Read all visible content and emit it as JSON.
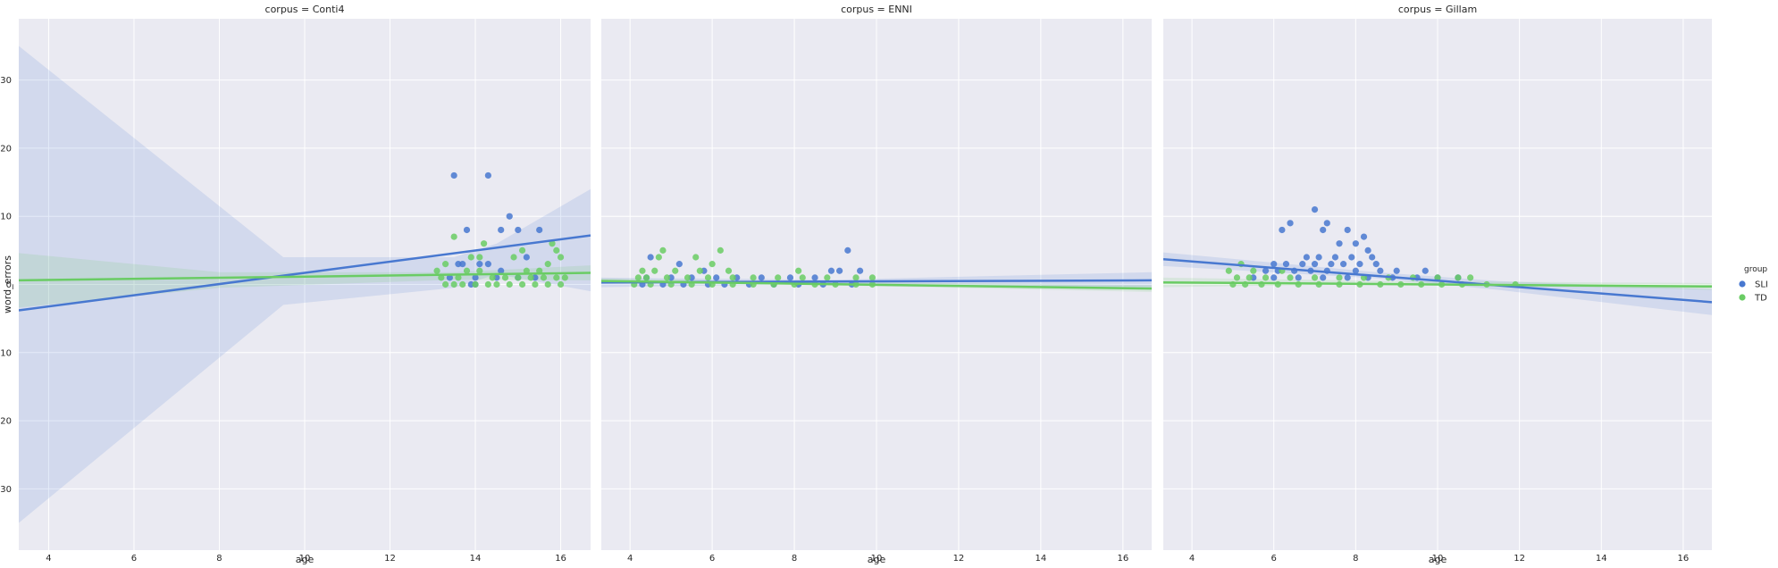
{
  "colors": {
    "SLI": "#4878d0",
    "TD": "#6acc64",
    "panel_bg": "#eaeaf2",
    "grid": "#ffffff"
  },
  "chart_data": {
    "type": "scatter",
    "grid": true,
    "ylabel": "word_errors",
    "ylim": [
      -39,
      39
    ],
    "yticks": [
      -30,
      -20,
      -10,
      0,
      10,
      20,
      30
    ],
    "xlim": [
      3.3,
      16.7
    ],
    "xticks": [
      4,
      6,
      8,
      10,
      12,
      14,
      16
    ],
    "legend": {
      "title": "group",
      "placement": "right",
      "entries": [
        "SLI",
        "TD"
      ]
    },
    "panels": [
      {
        "title": "corpus = Conti4",
        "xlabel": "age",
        "series": [
          {
            "name": "SLI",
            "points": [
              [
                13.5,
                16
              ],
              [
                14.3,
                16
              ],
              [
                13.8,
                8
              ],
              [
                14.8,
                10
              ],
              [
                14.6,
                8
              ],
              [
                15.0,
                8
              ],
              [
                15.5,
                8
              ],
              [
                13.6,
                3
              ],
              [
                13.7,
                3
              ],
              [
                14.1,
                3
              ],
              [
                14.3,
                3
              ],
              [
                14.6,
                2
              ],
              [
                15.2,
                4
              ],
              [
                13.4,
                1
              ],
              [
                14.0,
                1
              ],
              [
                14.5,
                1
              ],
              [
                15.0,
                1
              ],
              [
                15.4,
                1
              ],
              [
                14.0,
                0
              ],
              [
                13.9,
                0
              ]
            ],
            "fit": [
              [
                3.3,
                -3.8
              ],
              [
                16.7,
                7.2
              ]
            ],
            "band": [
              [
                3.3,
                -35
              ],
              [
                9.5,
                -3
              ],
              [
                13.5,
                -0.5
              ],
              [
                14.5,
                1.5
              ],
              [
                16.7,
                -1
              ],
              [
                16.7,
                14
              ],
              [
                14.5,
                6
              ],
              [
                13.5,
                4
              ],
              [
                9.5,
                4
              ],
              [
                3.3,
                35
              ]
            ]
          },
          {
            "name": "TD",
            "points": [
              [
                13.5,
                7
              ],
              [
                14.2,
                6
              ],
              [
                15.8,
                6
              ],
              [
                15.9,
                5
              ],
              [
                13.3,
                3
              ],
              [
                13.1,
                2
              ],
              [
                15.7,
                3
              ],
              [
                14.9,
                4
              ],
              [
                15.1,
                5
              ],
              [
                16.0,
                4
              ],
              [
                13.2,
                1
              ],
              [
                13.6,
                1
              ],
              [
                13.8,
                2
              ],
              [
                14.1,
                2
              ],
              [
                14.4,
                1
              ],
              [
                14.7,
                1
              ],
              [
                15.0,
                1
              ],
              [
                15.3,
                1
              ],
              [
                15.6,
                1
              ],
              [
                15.9,
                1
              ],
              [
                16.1,
                1
              ],
              [
                13.3,
                0
              ],
              [
                13.5,
                0
              ],
              [
                13.7,
                0
              ],
              [
                14.0,
                0
              ],
              [
                14.3,
                0
              ],
              [
                14.5,
                0
              ],
              [
                14.8,
                0
              ],
              [
                15.1,
                0
              ],
              [
                15.4,
                0
              ],
              [
                15.7,
                0
              ],
              [
                16.0,
                0
              ],
              [
                13.9,
                4
              ],
              [
                14.1,
                4
              ],
              [
                15.2,
                2
              ],
              [
                15.5,
                2
              ]
            ],
            "fit": [
              [
                3.3,
                0.6
              ],
              [
                16.7,
                1.7
              ]
            ],
            "band": [
              [
                3.3,
                -3.4
              ],
              [
                8,
                -0.5
              ],
              [
                13.5,
                0.7
              ],
              [
                16.7,
                0.6
              ],
              [
                16.7,
                2.8
              ],
              [
                13.5,
                1.8
              ],
              [
                8,
                1.8
              ],
              [
                3.3,
                4.6
              ]
            ]
          }
        ]
      },
      {
        "title": "corpus = ENNI",
        "xlabel": "age",
        "series": [
          {
            "name": "SLI",
            "points": [
              [
                9.3,
                5
              ],
              [
                4.5,
                4
              ],
              [
                5.2,
                3
              ],
              [
                5.8,
                2
              ],
              [
                8.9,
                2
              ],
              [
                9.1,
                2
              ],
              [
                9.6,
                2
              ],
              [
                4.4,
                1
              ],
              [
                5.0,
                1
              ],
              [
                5.5,
                1
              ],
              [
                6.1,
                1
              ],
              [
                6.6,
                1
              ],
              [
                7.2,
                1
              ],
              [
                7.9,
                1
              ],
              [
                8.5,
                1
              ],
              [
                4.3,
                0
              ],
              [
                4.8,
                0
              ],
              [
                5.3,
                0
              ],
              [
                5.9,
                0
              ],
              [
                6.3,
                0
              ],
              [
                6.9,
                0
              ],
              [
                7.5,
                0
              ],
              [
                8.1,
                0
              ],
              [
                8.7,
                0
              ],
              [
                9.4,
                0
              ]
            ],
            "fit": [
              [
                3.3,
                0.3
              ],
              [
                16.7,
                0.6
              ]
            ],
            "band": [
              [
                3.3,
                -0.4
              ],
              [
                9,
                0.1
              ],
              [
                16.7,
                -0.6
              ],
              [
                16.7,
                1.8
              ],
              [
                9,
                0.7
              ],
              [
                3.3,
                1.0
              ]
            ]
          },
          {
            "name": "TD",
            "points": [
              [
                4.8,
                5
              ],
              [
                6.2,
                5
              ],
              [
                4.7,
                4
              ],
              [
                5.6,
                4
              ],
              [
                6.0,
                3
              ],
              [
                4.3,
                2
              ],
              [
                4.6,
                2
              ],
              [
                5.1,
                2
              ],
              [
                5.7,
                2
              ],
              [
                6.4,
                2
              ],
              [
                8.1,
                2
              ],
              [
                4.2,
                1
              ],
              [
                4.4,
                1
              ],
              [
                4.9,
                1
              ],
              [
                5.4,
                1
              ],
              [
                5.9,
                1
              ],
              [
                6.5,
                1
              ],
              [
                7.0,
                1
              ],
              [
                7.6,
                1
              ],
              [
                8.2,
                1
              ],
              [
                8.8,
                1
              ],
              [
                9.5,
                1
              ],
              [
                9.9,
                1
              ],
              [
                4.1,
                0
              ],
              [
                4.5,
                0
              ],
              [
                5.0,
                0
              ],
              [
                5.5,
                0
              ],
              [
                6.0,
                0
              ],
              [
                6.5,
                0
              ],
              [
                7.0,
                0
              ],
              [
                7.5,
                0
              ],
              [
                8.0,
                0
              ],
              [
                8.5,
                0
              ],
              [
                9.0,
                0
              ],
              [
                9.5,
                0
              ],
              [
                9.9,
                0
              ]
            ],
            "fit": [
              [
                3.3,
                0.5
              ],
              [
                16.7,
                -0.6
              ]
            ],
            "band": [
              [
                3.3,
                0.1
              ],
              [
                7,
                0.1
              ],
              [
                16.7,
                -1.1
              ],
              [
                16.7,
                -0.1
              ],
              [
                7,
                0.5
              ],
              [
                3.3,
                0.9
              ]
            ]
          }
        ]
      },
      {
        "title": "corpus = Gillam",
        "xlabel": "age",
        "series": [
          {
            "name": "SLI",
            "points": [
              [
                7.0,
                11
              ],
              [
                6.4,
                9
              ],
              [
                7.3,
                9
              ],
              [
                6.2,
                8
              ],
              [
                7.2,
                8
              ],
              [
                7.8,
                8
              ],
              [
                8.2,
                7
              ],
              [
                7.6,
                6
              ],
              [
                8.0,
                6
              ],
              [
                8.3,
                5
              ],
              [
                6.8,
                4
              ],
              [
                7.1,
                4
              ],
              [
                7.5,
                4
              ],
              [
                7.9,
                4
              ],
              [
                8.4,
                4
              ],
              [
                6.0,
                3
              ],
              [
                6.3,
                3
              ],
              [
                6.7,
                3
              ],
              [
                7.0,
                3
              ],
              [
                7.4,
                3
              ],
              [
                7.7,
                3
              ],
              [
                8.1,
                3
              ],
              [
                8.5,
                3
              ],
              [
                5.8,
                2
              ],
              [
                6.1,
                2
              ],
              [
                6.5,
                2
              ],
              [
                6.9,
                2
              ],
              [
                7.3,
                2
              ],
              [
                8.0,
                2
              ],
              [
                8.6,
                2
              ],
              [
                9.0,
                2
              ],
              [
                9.7,
                2
              ],
              [
                5.5,
                1
              ],
              [
                6.0,
                1
              ],
              [
                6.6,
                1
              ],
              [
                7.2,
                1
              ],
              [
                7.8,
                1
              ],
              [
                8.3,
                1
              ],
              [
                8.9,
                1
              ],
              [
                9.5,
                1
              ],
              [
                10.0,
                1
              ],
              [
                10.5,
                1
              ]
            ],
            "fit": [
              [
                3.3,
                3.7
              ],
              [
                16.7,
                -2.6
              ]
            ],
            "band": [
              [
                3.3,
                2.7
              ],
              [
                8.5,
                0.9
              ],
              [
                11.5,
                -0.8
              ],
              [
                16.7,
                -4.5
              ],
              [
                16.7,
                -0.7
              ],
              [
                11.5,
                0.5
              ],
              [
                8.5,
                1.8
              ],
              [
                3.3,
                4.7
              ]
            ]
          },
          {
            "name": "TD",
            "points": [
              [
                5.2,
                3
              ],
              [
                5.5,
                2
              ],
              [
                6.2,
                2
              ],
              [
                4.9,
                2
              ],
              [
                5.1,
                1
              ],
              [
                5.4,
                1
              ],
              [
                5.8,
                1
              ],
              [
                6.4,
                1
              ],
              [
                7.0,
                1
              ],
              [
                7.6,
                1
              ],
              [
                8.2,
                1
              ],
              [
                8.8,
                1
              ],
              [
                9.4,
                1
              ],
              [
                10.0,
                1
              ],
              [
                10.5,
                1
              ],
              [
                10.8,
                1
              ],
              [
                5.0,
                0
              ],
              [
                5.3,
                0
              ],
              [
                5.7,
                0
              ],
              [
                6.1,
                0
              ],
              [
                6.6,
                0
              ],
              [
                7.1,
                0
              ],
              [
                7.6,
                0
              ],
              [
                8.1,
                0
              ],
              [
                8.6,
                0
              ],
              [
                9.1,
                0
              ],
              [
                9.6,
                0
              ],
              [
                10.1,
                0
              ],
              [
                10.6,
                0
              ],
              [
                11.2,
                0
              ],
              [
                11.9,
                0
              ]
            ],
            "fit": [
              [
                3.3,
                0.3
              ],
              [
                16.7,
                -0.3
              ]
            ],
            "band": [
              [
                3.3,
                -0.4
              ],
              [
                9,
                0.1
              ],
              [
                16.7,
                -0.8
              ],
              [
                16.7,
                0.2
              ],
              [
                9,
                0.5
              ],
              [
                3.3,
                1.0
              ]
            ]
          }
        ]
      }
    ]
  }
}
